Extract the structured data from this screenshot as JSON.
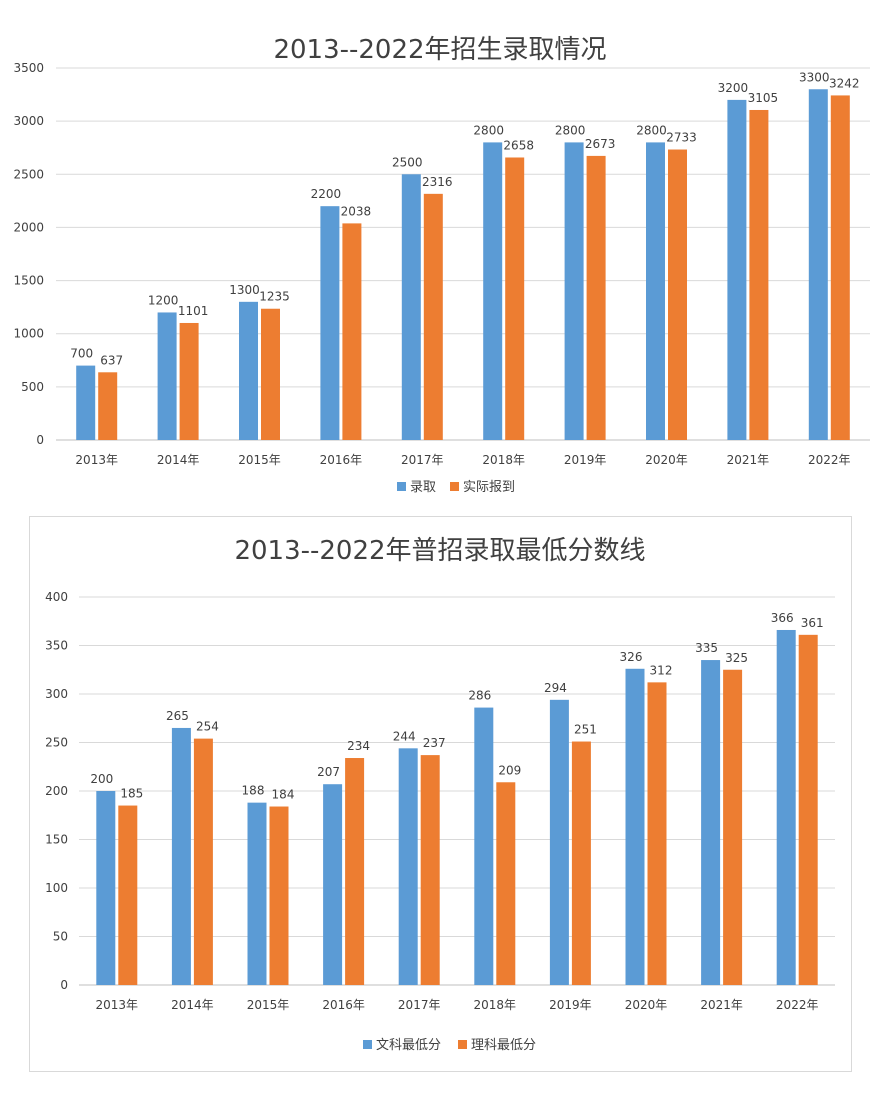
{
  "colors": {
    "series1": "#5b9bd5",
    "series2": "#ed7d31"
  },
  "chart_data": [
    {
      "type": "bar",
      "title": "2013--2022年招生录取情况",
      "categories": [
        "2013年",
        "2014年",
        "2015年",
        "2016年",
        "2017年",
        "2018年",
        "2019年",
        "2020年",
        "2021年",
        "2022年"
      ],
      "series": [
        {
          "name": "录取",
          "values": [
            700,
            1200,
            1300,
            2200,
            2500,
            2800,
            2800,
            2800,
            3200,
            3300
          ]
        },
        {
          "name": "实际报到",
          "values": [
            637,
            1101,
            1235,
            2038,
            2316,
            2658,
            2673,
            2733,
            3105,
            3242
          ]
        }
      ],
      "ylim": [
        0,
        3500
      ],
      "yticks": [
        0,
        500,
        1000,
        1500,
        2000,
        2500,
        3000,
        3500
      ],
      "grid": true,
      "legend": "bottom"
    },
    {
      "type": "bar",
      "title": "2013--2022年普招录取最低分数线",
      "categories": [
        "2013年",
        "2014年",
        "2015年",
        "2016年",
        "2017年",
        "2018年",
        "2019年",
        "2020年",
        "2021年",
        "2022年"
      ],
      "series": [
        {
          "name": "文科最低分",
          "values": [
            200,
            265,
            188,
            207,
            244,
            286,
            294,
            326,
            335,
            366
          ]
        },
        {
          "name": "理科最低分",
          "values": [
            185,
            254,
            184,
            234,
            237,
            209,
            251,
            312,
            325,
            361
          ]
        }
      ],
      "ylim": [
        0,
        400
      ],
      "yticks": [
        0,
        50,
        100,
        150,
        200,
        250,
        300,
        350,
        400
      ],
      "grid": true,
      "legend": "bottom"
    }
  ]
}
